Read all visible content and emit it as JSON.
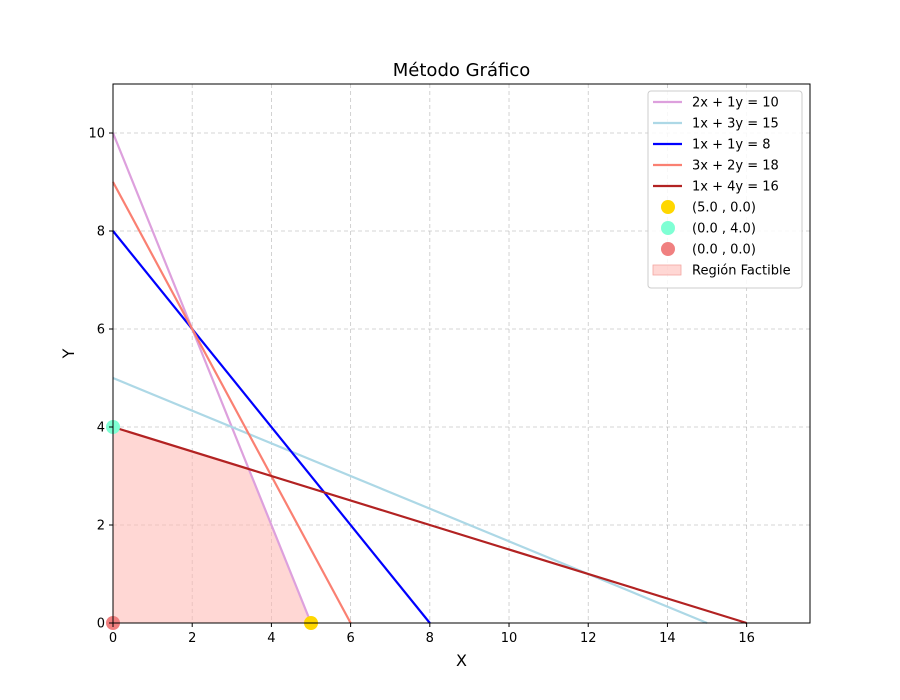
{
  "chart_data": {
    "type": "line",
    "title": "Método Gráfico",
    "xlabel": "X",
    "ylabel": "Y",
    "xlim": [
      0,
      17.6
    ],
    "ylim": [
      0,
      11
    ],
    "xticks": [
      0,
      2,
      4,
      6,
      8,
      10,
      12,
      14,
      16
    ],
    "yticks": [
      0,
      2,
      4,
      6,
      8,
      10
    ],
    "grid": true,
    "grid_style": "dashed",
    "legend_position": "top-right",
    "series": [
      {
        "name": "2x + 1y = 10",
        "color": "#dda0dd",
        "points": [
          [
            0,
            10
          ],
          [
            5,
            0
          ]
        ]
      },
      {
        "name": "1x + 3y = 15",
        "color": "#add8e6",
        "points": [
          [
            0,
            5
          ],
          [
            15,
            0
          ]
        ]
      },
      {
        "name": "1x + 1y = 8",
        "color": "#0000ff",
        "points": [
          [
            0,
            8
          ],
          [
            8,
            0
          ]
        ]
      },
      {
        "name": "3x + 2y = 18",
        "color": "#fa8072",
        "points": [
          [
            0,
            9
          ],
          [
            6,
            0
          ]
        ]
      },
      {
        "name": "1x + 4y = 16",
        "color": "#b22222",
        "points": [
          [
            0,
            4
          ],
          [
            16,
            0
          ]
        ]
      }
    ],
    "markers": [
      {
        "name": "(5.0 , 0.0)",
        "color": "#ffd700",
        "x": 5.0,
        "y": 0.0
      },
      {
        "name": "(0.0 , 4.0)",
        "color": "#7fffd4",
        "x": 0.0,
        "y": 4.0
      },
      {
        "name": "(0.0 , 0.0)",
        "color": "#f08080",
        "x": 0.0,
        "y": 0.0
      }
    ],
    "feasible_region": {
      "name": "Región Factible",
      "color": "#ffb6b0",
      "points": [
        [
          0,
          0
        ],
        [
          0,
          4
        ],
        [
          3.429,
          3.143
        ],
        [
          5,
          0
        ]
      ]
    }
  }
}
